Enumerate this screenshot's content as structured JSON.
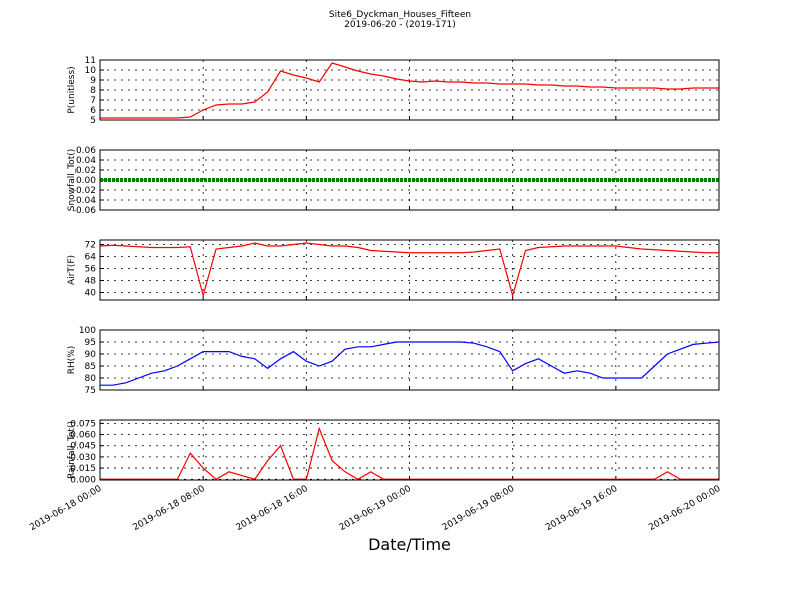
{
  "chart_data": [
    {
      "type": "line",
      "title": "Site6_Dyckman_Houses_Fifteen",
      "subtitle": "2019-06-20 - (2019-171)",
      "y_label": "P(unitless)",
      "x": [
        "2019-06-18 00:00",
        "2019-06-18 01:00",
        "2019-06-18 02:00",
        "2019-06-18 03:00",
        "2019-06-18 04:00",
        "2019-06-18 05:00",
        "2019-06-18 06:00",
        "2019-06-18 07:00",
        "2019-06-18 08:00",
        "2019-06-18 09:00",
        "2019-06-18 10:00",
        "2019-06-18 11:00",
        "2019-06-18 12:00",
        "2019-06-18 13:00",
        "2019-06-18 14:00",
        "2019-06-18 15:00",
        "2019-06-18 16:00",
        "2019-06-18 17:00",
        "2019-06-18 18:00",
        "2019-06-18 19:00",
        "2019-06-18 20:00",
        "2019-06-18 21:00",
        "2019-06-18 22:00",
        "2019-06-18 23:00",
        "2019-06-19 00:00",
        "2019-06-19 01:00",
        "2019-06-19 02:00",
        "2019-06-19 03:00",
        "2019-06-19 04:00",
        "2019-06-19 05:00",
        "2019-06-19 06:00",
        "2019-06-19 07:00",
        "2019-06-19 08:00",
        "2019-06-19 09:00",
        "2019-06-19 10:00",
        "2019-06-19 11:00",
        "2019-06-19 12:00",
        "2019-06-19 13:00",
        "2019-06-19 14:00",
        "2019-06-19 15:00",
        "2019-06-19 16:00",
        "2019-06-19 17:00",
        "2019-06-19 18:00",
        "2019-06-19 19:00",
        "2019-06-19 20:00",
        "2019-06-19 21:00",
        "2019-06-19 22:00",
        "2019-06-19 23:00",
        "2019-06-20 00:00"
      ],
      "series": [
        {
          "color": "#ff0000",
          "values": [
            5.2,
            5.2,
            5.2,
            5.2,
            5.2,
            5.2,
            5.2,
            5.3,
            6.0,
            6.5,
            6.6,
            6.6,
            6.8,
            7.8,
            9.9,
            9.5,
            9.2,
            8.8,
            10.7,
            10.3,
            9.9,
            9.6,
            9.4,
            9.1,
            8.9,
            8.8,
            8.9,
            8.8,
            8.8,
            8.7,
            8.7,
            8.6,
            8.6,
            8.6,
            8.5,
            8.5,
            8.4,
            8.4,
            8.3,
            8.3,
            8.2,
            8.2,
            8.2,
            8.2,
            8.1,
            8.1,
            8.2,
            8.2,
            8.2
          ]
        }
      ],
      "xlim": [
        "2019-06-18 00:00",
        "2019-06-20 00:00"
      ],
      "xticks": [
        "2019-06-18 00:00",
        "2019-06-18 08:00",
        "2019-06-18 16:00",
        "2019-06-19 00:00",
        "2019-06-19 08:00",
        "2019-06-19 16:00",
        "2019-06-20 00:00"
      ],
      "ylim": [
        5,
        11
      ],
      "yticks": [
        5,
        6,
        7,
        8,
        9,
        10,
        11
      ],
      "grid": true
    },
    {
      "type": "line",
      "y_label": "Snowfall_Tot()",
      "x": [
        "2019-06-18 00:00",
        "2019-06-18 01:00",
        "2019-06-18 02:00",
        "2019-06-18 03:00",
        "2019-06-18 04:00",
        "2019-06-18 05:00",
        "2019-06-18 06:00",
        "2019-06-18 07:00",
        "2019-06-18 08:00",
        "2019-06-18 09:00",
        "2019-06-18 10:00",
        "2019-06-18 11:00",
        "2019-06-18 12:00",
        "2019-06-18 13:00",
        "2019-06-18 14:00",
        "2019-06-18 15:00",
        "2019-06-18 16:00",
        "2019-06-18 17:00",
        "2019-06-18 18:00",
        "2019-06-18 19:00",
        "2019-06-18 20:00",
        "2019-06-18 21:00",
        "2019-06-18 22:00",
        "2019-06-18 23:00",
        "2019-06-19 00:00",
        "2019-06-19 01:00",
        "2019-06-19 02:00",
        "2019-06-19 03:00",
        "2019-06-19 04:00",
        "2019-06-19 05:00",
        "2019-06-19 06:00",
        "2019-06-19 07:00",
        "2019-06-19 08:00",
        "2019-06-19 09:00",
        "2019-06-19 10:00",
        "2019-06-19 11:00",
        "2019-06-19 12:00",
        "2019-06-19 13:00",
        "2019-06-19 14:00",
        "2019-06-19 15:00",
        "2019-06-19 16:00",
        "2019-06-19 17:00",
        "2019-06-19 18:00",
        "2019-06-19 19:00",
        "2019-06-19 20:00",
        "2019-06-19 21:00",
        "2019-06-19 22:00",
        "2019-06-19 23:00",
        "2019-06-20 00:00"
      ],
      "series": [
        {
          "color": "#008000",
          "values": [
            0,
            0,
            0,
            0,
            0,
            0,
            0,
            0,
            0,
            0,
            0,
            0,
            0,
            0,
            0,
            0,
            0,
            0,
            0,
            0,
            0,
            0,
            0,
            0,
            0,
            0,
            0,
            0,
            0,
            0,
            0,
            0,
            0,
            0,
            0,
            0,
            0,
            0,
            0,
            0,
            0,
            0,
            0,
            0,
            0,
            0,
            0,
            0,
            0
          ]
        }
      ],
      "xlim": [
        "2019-06-18 00:00",
        "2019-06-20 00:00"
      ],
      "xticks": [
        "2019-06-18 00:00",
        "2019-06-18 08:00",
        "2019-06-18 16:00",
        "2019-06-19 00:00",
        "2019-06-19 08:00",
        "2019-06-19 16:00",
        "2019-06-20 00:00"
      ],
      "ylim": [
        -0.06,
        0.06
      ],
      "yticks": [
        -0.06,
        -0.04,
        -0.02,
        {
          "value": 0,
          "label": "0.00"
        },
        0.02,
        0.04,
        0.06
      ],
      "grid": true
    },
    {
      "type": "line",
      "y_label": "AirT(F)",
      "x": [
        "2019-06-18 00:00",
        "2019-06-18 01:00",
        "2019-06-18 02:00",
        "2019-06-18 03:00",
        "2019-06-18 04:00",
        "2019-06-18 05:00",
        "2019-06-18 06:00",
        "2019-06-18 07:00",
        "2019-06-18 08:00",
        "2019-06-18 09:00",
        "2019-06-18 10:00",
        "2019-06-18 11:00",
        "2019-06-18 12:00",
        "2019-06-18 13:00",
        "2019-06-18 14:00",
        "2019-06-18 15:00",
        "2019-06-18 16:00",
        "2019-06-18 17:00",
        "2019-06-18 18:00",
        "2019-06-18 19:00",
        "2019-06-18 20:00",
        "2019-06-18 21:00",
        "2019-06-18 22:00",
        "2019-06-18 23:00",
        "2019-06-19 00:00",
        "2019-06-19 01:00",
        "2019-06-19 02:00",
        "2019-06-19 03:00",
        "2019-06-19 04:00",
        "2019-06-19 05:00",
        "2019-06-19 06:00",
        "2019-06-19 07:00",
        "2019-06-19 08:00",
        "2019-06-19 09:00",
        "2019-06-19 10:00",
        "2019-06-19 11:00",
        "2019-06-19 12:00",
        "2019-06-19 13:00",
        "2019-06-19 14:00",
        "2019-06-19 15:00",
        "2019-06-19 16:00",
        "2019-06-19 17:00",
        "2019-06-19 18:00",
        "2019-06-19 19:00",
        "2019-06-19 20:00",
        "2019-06-19 21:00",
        "2019-06-19 22:00",
        "2019-06-19 23:00",
        "2019-06-20 00:00"
      ],
      "series": [
        {
          "color": "#ff0000",
          "values": [
            71,
            71.5,
            71,
            70.5,
            70,
            70,
            70,
            70.5,
            38,
            69,
            70,
            71,
            73,
            71,
            71,
            72,
            73,
            72,
            71,
            71,
            70,
            68,
            67.5,
            67,
            66.5,
            66.5,
            66.5,
            66.5,
            66.5,
            67,
            68,
            69,
            38,
            68,
            70,
            70.5,
            71,
            71,
            71,
            71,
            71,
            70,
            69,
            68.5,
            68,
            67.5,
            67,
            66.5,
            66.5
          ]
        }
      ],
      "xlim": [
        "2019-06-18 00:00",
        "2019-06-20 00:00"
      ],
      "xticks": [
        "2019-06-18 00:00",
        "2019-06-18 08:00",
        "2019-06-18 16:00",
        "2019-06-19 00:00",
        "2019-06-19 08:00",
        "2019-06-19 16:00",
        "2019-06-20 00:00"
      ],
      "ylim": [
        35,
        75
      ],
      "yticks": [
        40,
        48,
        56,
        64,
        72
      ],
      "grid": true
    },
    {
      "type": "line",
      "y_label": "RH(%)",
      "x": [
        "2019-06-18 00:00",
        "2019-06-18 01:00",
        "2019-06-18 02:00",
        "2019-06-18 03:00",
        "2019-06-18 04:00",
        "2019-06-18 05:00",
        "2019-06-18 06:00",
        "2019-06-18 07:00",
        "2019-06-18 08:00",
        "2019-06-18 09:00",
        "2019-06-18 10:00",
        "2019-06-18 11:00",
        "2019-06-18 12:00",
        "2019-06-18 13:00",
        "2019-06-18 14:00",
        "2019-06-18 15:00",
        "2019-06-18 16:00",
        "2019-06-18 17:00",
        "2019-06-18 18:00",
        "2019-06-18 19:00",
        "2019-06-18 20:00",
        "2019-06-18 21:00",
        "2019-06-18 22:00",
        "2019-06-18 23:00",
        "2019-06-19 00:00",
        "2019-06-19 01:00",
        "2019-06-19 02:00",
        "2019-06-19 03:00",
        "2019-06-19 04:00",
        "2019-06-19 05:00",
        "2019-06-19 06:00",
        "2019-06-19 07:00",
        "2019-06-19 08:00",
        "2019-06-19 09:00",
        "2019-06-19 10:00",
        "2019-06-19 11:00",
        "2019-06-19 12:00",
        "2019-06-19 13:00",
        "2019-06-19 14:00",
        "2019-06-19 15:00",
        "2019-06-19 16:00",
        "2019-06-19 17:00",
        "2019-06-19 18:00",
        "2019-06-19 19:00",
        "2019-06-19 20:00",
        "2019-06-19 21:00",
        "2019-06-19 22:00",
        "2019-06-19 23:00",
        "2019-06-20 00:00"
      ],
      "series": [
        {
          "color": "#0000ff",
          "values": [
            77,
            77,
            78,
            80,
            82,
            83,
            85,
            88,
            91,
            91,
            91,
            89,
            88,
            84,
            88,
            91,
            87,
            85,
            87,
            92,
            93,
            93,
            94,
            95,
            95,
            95,
            95,
            95,
            95,
            94.5,
            93,
            91,
            83,
            86,
            88,
            85,
            82,
            83,
            82,
            80,
            80,
            80,
            80,
            85,
            90,
            92,
            94,
            94.5,
            95
          ]
        }
      ],
      "xlim": [
        "2019-06-18 00:00",
        "2019-06-20 00:00"
      ],
      "xticks": [
        "2019-06-18 00:00",
        "2019-06-18 08:00",
        "2019-06-18 16:00",
        "2019-06-19 00:00",
        "2019-06-19 08:00",
        "2019-06-19 16:00",
        "2019-06-20 00:00"
      ],
      "ylim": [
        75,
        100
      ],
      "yticks": [
        75,
        80,
        85,
        90,
        95,
        100
      ],
      "grid": true
    },
    {
      "type": "line",
      "y_label": "Rainfall_Tot()",
      "x_label": "Date/Time",
      "x": [
        "2019-06-18 00:00",
        "2019-06-18 01:00",
        "2019-06-18 02:00",
        "2019-06-18 03:00",
        "2019-06-18 04:00",
        "2019-06-18 05:00",
        "2019-06-18 06:00",
        "2019-06-18 07:00",
        "2019-06-18 08:00",
        "2019-06-18 09:00",
        "2019-06-18 10:00",
        "2019-06-18 11:00",
        "2019-06-18 12:00",
        "2019-06-18 13:00",
        "2019-06-18 14:00",
        "2019-06-18 15:00",
        "2019-06-18 16:00",
        "2019-06-18 17:00",
        "2019-06-18 18:00",
        "2019-06-18 19:00",
        "2019-06-18 20:00",
        "2019-06-18 21:00",
        "2019-06-18 22:00",
        "2019-06-18 23:00",
        "2019-06-19 00:00",
        "2019-06-19 01:00",
        "2019-06-19 02:00",
        "2019-06-19 03:00",
        "2019-06-19 04:00",
        "2019-06-19 05:00",
        "2019-06-19 06:00",
        "2019-06-19 07:00",
        "2019-06-19 08:00",
        "2019-06-19 09:00",
        "2019-06-19 10:00",
        "2019-06-19 11:00",
        "2019-06-19 12:00",
        "2019-06-19 13:00",
        "2019-06-19 14:00",
        "2019-06-19 15:00",
        "2019-06-19 16:00",
        "2019-06-19 17:00",
        "2019-06-19 18:00",
        "2019-06-19 19:00",
        "2019-06-19 20:00",
        "2019-06-19 21:00",
        "2019-06-19 22:00",
        "2019-06-19 23:00",
        "2019-06-20 00:00"
      ],
      "series": [
        {
          "color": "#ff0000",
          "values": [
            0,
            0,
            0,
            0,
            0,
            0,
            0,
            0.035,
            0.015,
            0,
            0.01,
            0.005,
            0,
            0.025,
            0.045,
            0,
            0,
            0.068,
            0.025,
            0.01,
            0,
            0.01,
            0,
            0,
            0,
            0,
            0,
            0,
            0,
            0,
            0,
            0,
            0,
            0,
            0,
            0,
            0,
            0,
            0,
            0,
            0,
            0,
            0,
            0,
            0.01,
            0,
            0,
            0,
            0
          ]
        }
      ],
      "xlim": [
        "2019-06-18 00:00",
        "2019-06-20 00:00"
      ],
      "xticks": [
        "2019-06-18 00:00",
        "2019-06-18 08:00",
        "2019-06-18 16:00",
        "2019-06-19 00:00",
        "2019-06-19 08:00",
        "2019-06-19 16:00",
        "2019-06-20 00:00"
      ],
      "ylim": [
        -0.001,
        0.0795
      ],
      "yticks": [
        {
          "value": 0,
          "label": "0.000"
        },
        {
          "value": 0.015,
          "label": "0.015"
        },
        {
          "value": 0.03,
          "label": "0.030"
        },
        {
          "value": 0.045,
          "label": "0.045"
        },
        {
          "value": 0.06,
          "label": "0.060"
        },
        {
          "value": 0.075,
          "label": "0.075"
        }
      ],
      "grid": true
    }
  ]
}
